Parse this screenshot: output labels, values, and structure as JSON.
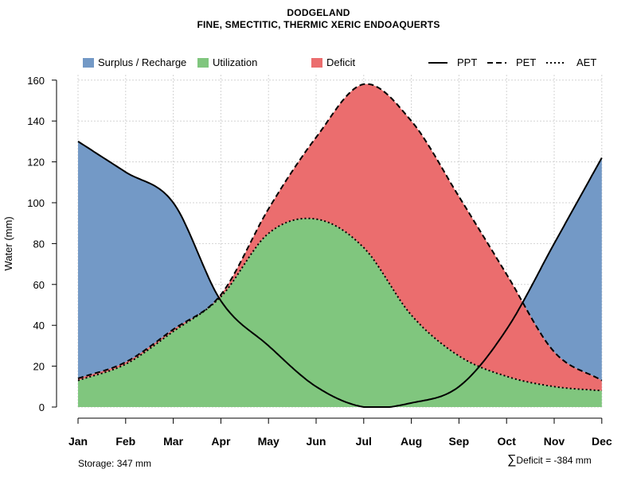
{
  "chart_data": {
    "type": "area",
    "title": "DODGELAND",
    "subtitle": "FINE, SMECTITIC, THERMIC XERIC ENDOAQUERTS",
    "xlabel": "",
    "ylabel": "Water (mm)",
    "ylim": [
      0,
      160
    ],
    "yticks": [
      0,
      20,
      40,
      60,
      80,
      100,
      120,
      140,
      160
    ],
    "grid": true,
    "legend_position": "top",
    "categories": [
      "Jan",
      "Feb",
      "Mar",
      "Apr",
      "May",
      "Jun",
      "Jul",
      "Aug",
      "Sep",
      "Oct",
      "Nov",
      "Dec"
    ],
    "series": [
      {
        "name": "PPT",
        "style": "solid",
        "values": [
          130,
          115,
          100,
          52,
          30,
          10,
          0,
          2,
          10,
          38,
          80,
          122
        ]
      },
      {
        "name": "PET",
        "style": "dashed",
        "values": [
          14,
          22,
          38,
          55,
          97,
          132,
          158,
          140,
          103,
          65,
          27,
          13
        ]
      },
      {
        "name": "AET",
        "style": "dotted",
        "values": [
          13,
          21,
          37,
          54,
          85,
          92,
          78,
          45,
          25,
          15,
          10,
          8
        ]
      }
    ],
    "legend": [
      {
        "label": "Surplus / Recharge",
        "kind": "fill",
        "color": "#7399C6"
      },
      {
        "label": "Utilization",
        "kind": "fill",
        "color": "#80C67E"
      },
      {
        "label": "Deficit",
        "kind": "fill",
        "color": "#EB6D6E"
      },
      {
        "label": "PPT",
        "kind": "line",
        "style": "solid"
      },
      {
        "label": "PET",
        "kind": "line",
        "style": "dashed"
      },
      {
        "label": "AET",
        "kind": "line",
        "style": "dotted"
      }
    ],
    "colors": {
      "surplus": "#7399C6",
      "utilization": "#80C67E",
      "deficit": "#EB6D6E",
      "grid": "#D3D3D3",
      "line": "#000000"
    },
    "annotations": {
      "storage": "Storage: 347 mm",
      "deficit_symbol": "∑",
      "deficit": "Deficit = -384 mm"
    }
  }
}
